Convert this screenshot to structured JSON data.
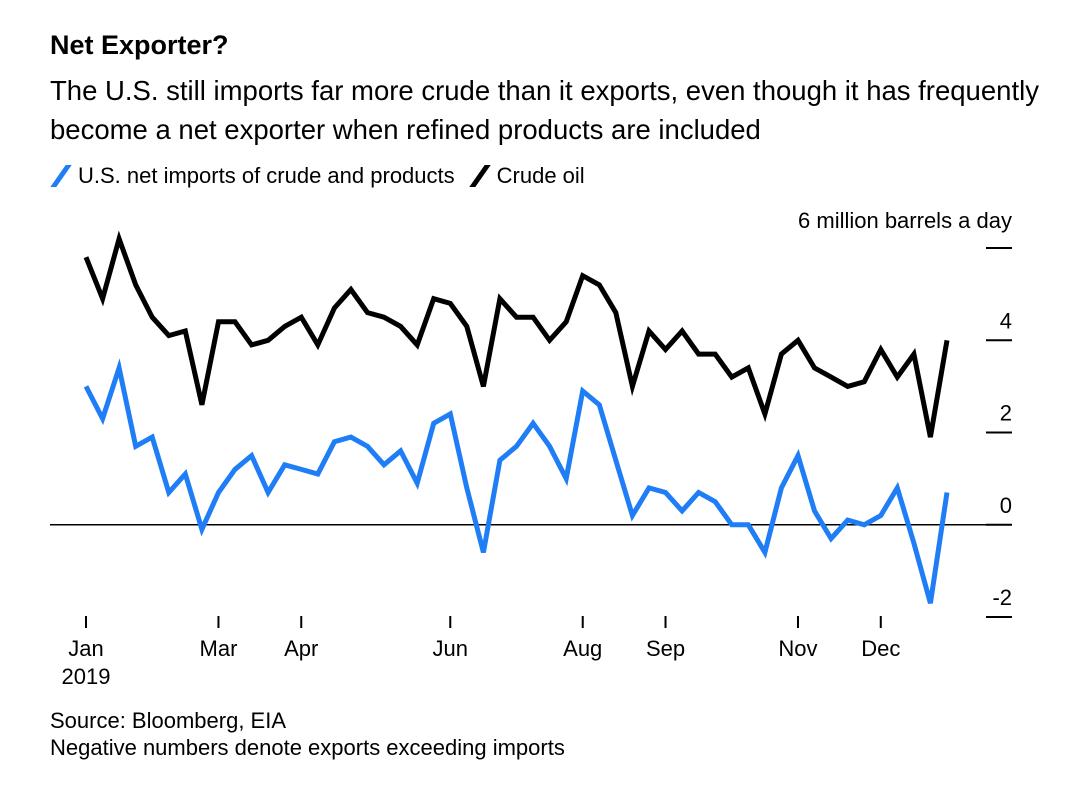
{
  "header": {
    "title": "Net Exporter?",
    "subtitle": "The U.S. still imports far more crude than it exports, even though it has frequently become a net exporter when refined products are included"
  },
  "legend": [
    {
      "label": "U.S. net imports of crude and products",
      "color": "#1f7df5"
    },
    {
      "label": "Crude oil",
      "color": "#000000"
    }
  ],
  "footer": {
    "source": "Source: Bloomberg, EIA",
    "note": "Negative numbers denote exports exceeding imports"
  },
  "chart_data": {
    "type": "line",
    "title": "Net Exporter?",
    "ylabel": "6 million barrels a day",
    "ylim": [
      -2,
      6
    ],
    "y_ticks": [
      {
        "value": 6,
        "label": "6 million barrels a day"
      },
      {
        "value": 4,
        "label": "4"
      },
      {
        "value": 2,
        "label": "2"
      },
      {
        "value": 0,
        "label": "0"
      },
      {
        "value": -2,
        "label": "-2"
      }
    ],
    "x_ticks": [
      {
        "label": "Jan",
        "sublabel": "2019",
        "week": 0
      },
      {
        "label": "Mar",
        "week": 8
      },
      {
        "label": "Apr",
        "week": 13
      },
      {
        "label": "Jun",
        "week": 22
      },
      {
        "label": "Aug",
        "week": 30
      },
      {
        "label": "Sep",
        "week": 35
      },
      {
        "label": "Nov",
        "week": 43
      },
      {
        "label": "Dec",
        "week": 48
      }
    ],
    "zero_line": true,
    "series": [
      {
        "name": "U.S. net imports of crude and products",
        "color": "#1f7df5",
        "values": [
          3.0,
          2.3,
          3.4,
          1.7,
          1.9,
          0.7,
          1.1,
          -0.1,
          0.7,
          1.2,
          1.5,
          0.7,
          1.3,
          1.2,
          1.1,
          1.8,
          1.9,
          1.7,
          1.3,
          1.6,
          0.9,
          2.2,
          2.4,
          0.8,
          -0.6,
          1.4,
          1.7,
          2.2,
          1.7,
          1.0,
          2.9,
          2.6,
          1.4,
          0.2,
          0.8,
          0.7,
          0.3,
          0.7,
          0.5,
          0.0,
          0.0,
          -0.6,
          0.8,
          1.5,
          0.3,
          -0.3,
          0.1,
          0.0,
          0.2,
          0.8,
          -0.4,
          -1.7,
          0.7
        ]
      },
      {
        "name": "Crude oil",
        "color": "#000000",
        "values": [
          5.8,
          4.9,
          6.2,
          5.2,
          4.5,
          4.1,
          4.2,
          2.6,
          4.4,
          4.4,
          3.9,
          4.0,
          4.3,
          4.5,
          3.9,
          4.7,
          5.1,
          4.6,
          4.5,
          4.3,
          3.9,
          4.9,
          4.8,
          4.3,
          3.0,
          4.9,
          4.5,
          4.5,
          4.0,
          4.4,
          5.4,
          5.2,
          4.6,
          3.0,
          4.2,
          3.8,
          4.2,
          3.7,
          3.7,
          3.2,
          3.4,
          2.4,
          3.7,
          4.0,
          3.4,
          3.2,
          3.0,
          3.1,
          3.8,
          3.2,
          3.7,
          1.9,
          4.0
        ]
      }
    ]
  }
}
